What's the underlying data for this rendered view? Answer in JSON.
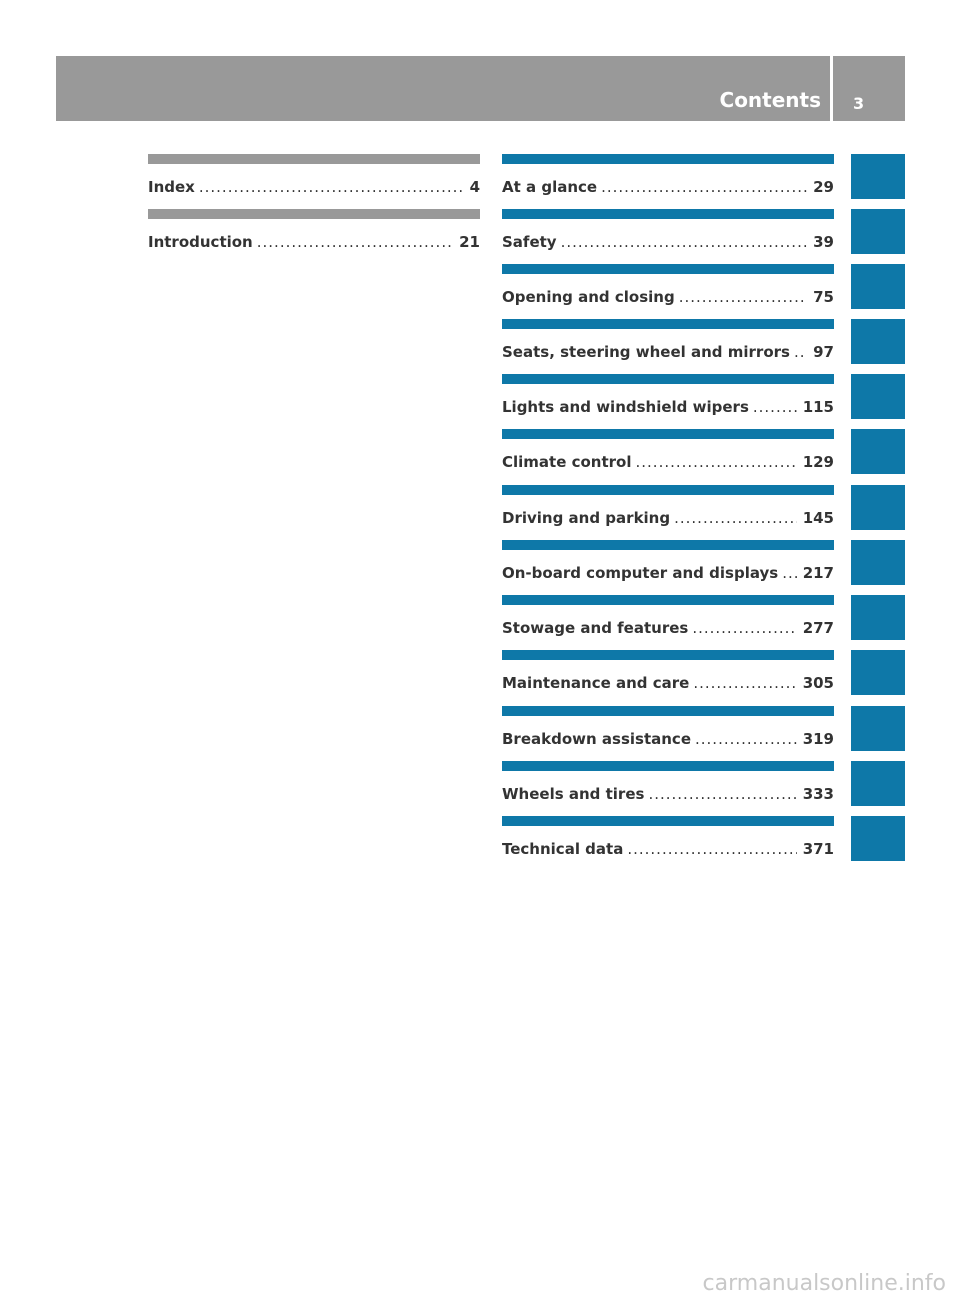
{
  "header": {
    "title": "Contents",
    "page_number": "3",
    "color": "#999999"
  },
  "colors": {
    "left_bar": "#999999",
    "right_bar": "#0e78a8",
    "tab": "#0e78a8"
  },
  "left_entries": [
    {
      "label": "Index",
      "page": "4"
    },
    {
      "label": "Introduction",
      "page": "21"
    }
  ],
  "right_entries": [
    {
      "label": "At a glance",
      "page": "29"
    },
    {
      "label": "Safety",
      "page": "39"
    },
    {
      "label": "Opening and closing",
      "page": "75"
    },
    {
      "label": "Seats, steering wheel and mirrors",
      "page": "97"
    },
    {
      "label": "Lights and windshield wipers",
      "page": "115"
    },
    {
      "label": "Climate control",
      "page": "129"
    },
    {
      "label": "Driving and parking",
      "page": "145"
    },
    {
      "label": "On-board computer and displays",
      "page": "217"
    },
    {
      "label": "Stowage and features",
      "page": "277"
    },
    {
      "label": "Maintenance and care",
      "page": "305"
    },
    {
      "label": "Breakdown assistance",
      "page": "319"
    },
    {
      "label": "Wheels and tires",
      "page": "333"
    },
    {
      "label": "Technical data",
      "page": "371"
    }
  ],
  "watermark": "carmanualsonline.info"
}
